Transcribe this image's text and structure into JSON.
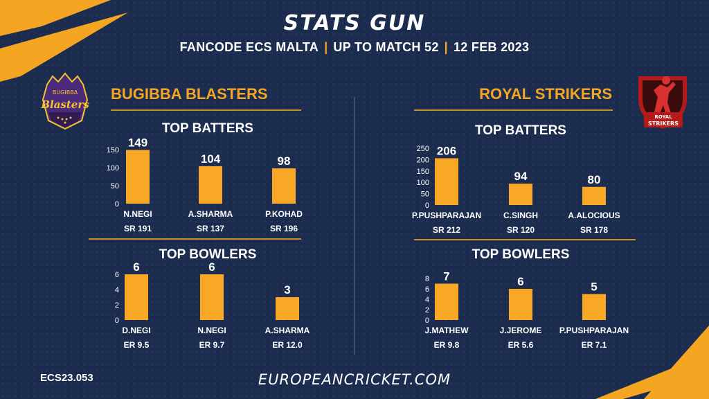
{
  "header": {
    "title": "STATS GUN",
    "competition": "FANCODE ECS MALTA",
    "upto": "UP TO MATCH  52",
    "date": "12 FEB 2023"
  },
  "teams": [
    {
      "name": "BUGIBBA BLASTERS",
      "logo_text_top": "BUGIBBA",
      "logo_text_main": "Blasters",
      "batters_title": "TOP BATTERS",
      "bowlers_title": "TOP BOWLERS"
    },
    {
      "name": "ROYAL STRIKERS",
      "logo_text_top": "ROYAL",
      "logo_text_main": "STRIKERS",
      "batters_title": "TOP BATTERS",
      "bowlers_title": "TOP BOWLERS"
    }
  ],
  "footer": {
    "code": "ECS23.053",
    "site": "EUROPEANCRICKET.COM"
  },
  "colors": {
    "background": "#1b2c4e",
    "accent": "#f4a623",
    "bar": "#f9a825",
    "divider": "#c88e2a"
  },
  "chart_data": [
    {
      "type": "bar",
      "title": "TOP BATTERS",
      "team": "BUGIBBA BLASTERS",
      "categories": [
        "N.NEGI",
        "A.SHARMA",
        "P.KOHAD"
      ],
      "values": [
        149,
        104,
        98
      ],
      "secondary_labels": [
        "SR 191",
        "SR 137",
        "SR 196"
      ],
      "yticks": [
        0,
        50,
        100,
        150
      ],
      "ylim": [
        0,
        150
      ],
      "grid": false
    },
    {
      "type": "bar",
      "title": "TOP BOWLERS",
      "team": "BUGIBBA BLASTERS",
      "categories": [
        "D.NEGI",
        "N.NEGI",
        "A.SHARMA"
      ],
      "values": [
        6,
        6,
        3
      ],
      "secondary_labels": [
        "ER 9.5",
        "ER 9.7",
        "ER 12.0"
      ],
      "yticks": [
        0,
        2,
        4,
        6
      ],
      "ylim": [
        0,
        6
      ],
      "grid": false
    },
    {
      "type": "bar",
      "title": "TOP BATTERS",
      "team": "ROYAL STRIKERS",
      "categories": [
        "P.PUSHPARAJAN",
        "C.SINGH",
        "A.ALOCIOUS"
      ],
      "values": [
        206,
        94,
        80
      ],
      "secondary_labels": [
        "SR 212",
        "SR 120",
        "SR 178"
      ],
      "yticks": [
        0,
        50,
        100,
        150,
        200,
        250
      ],
      "ylim": [
        0,
        250
      ],
      "grid": false
    },
    {
      "type": "bar",
      "title": "TOP BOWLERS",
      "team": "ROYAL STRIKERS",
      "categories": [
        "J.MATHEW",
        "J.JEROME",
        "P.PUSHPARAJAN"
      ],
      "values": [
        7,
        6,
        5
      ],
      "secondary_labels": [
        "ER 9.8",
        "ER 5.6",
        "ER 7.1"
      ],
      "yticks": [
        0,
        2,
        4,
        6,
        8
      ],
      "ylim": [
        0,
        8
      ],
      "grid": false
    }
  ]
}
